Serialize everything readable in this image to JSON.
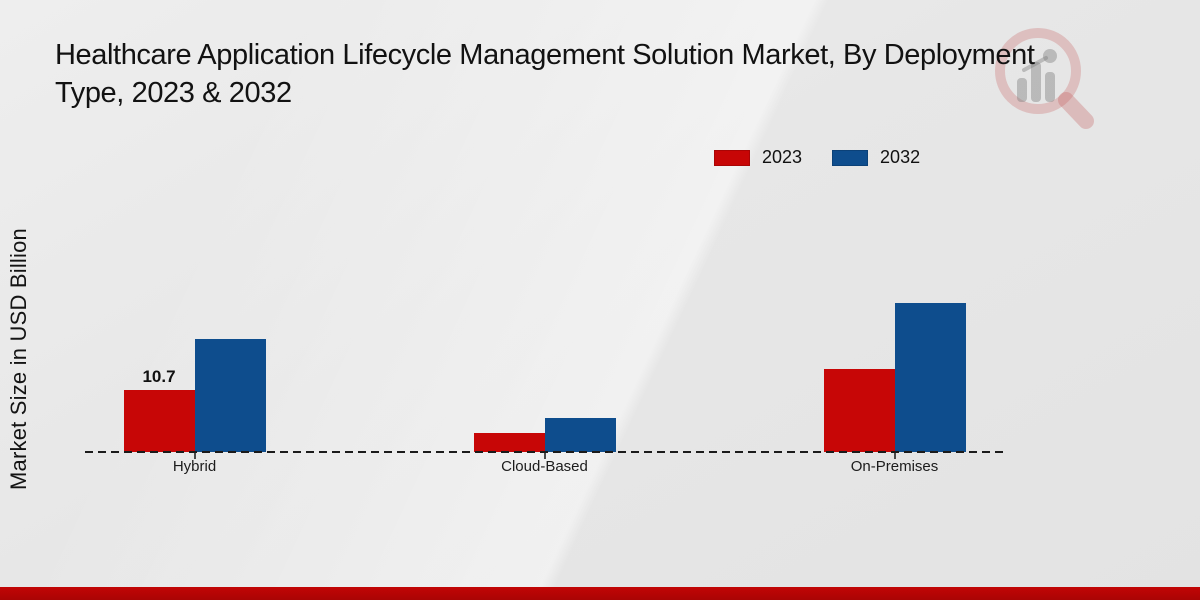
{
  "header": {
    "title_line1": "Healthcare Application Lifecycle Management Solution Market, By Deployment",
    "title_line2": "Type, 2023 & 2032"
  },
  "axis": {
    "y_label": "Market Size in USD Billion"
  },
  "chart_data": {
    "type": "bar",
    "title": "Healthcare Application Lifecycle Management Solution Market, By Deployment Type, 2023 & 2032",
    "xlabel": "",
    "ylabel": "Market Size in USD Billion",
    "categories": [
      "Hybrid",
      "Cloud-Based",
      "On-Premises"
    ],
    "series": [
      {
        "name": "2023",
        "color": "#c70606",
        "values": [
          10.7,
          3.3,
          14.3
        ]
      },
      {
        "name": "2032",
        "color": "#0e4d8d",
        "values": [
          19.5,
          5.9,
          25.7
        ]
      }
    ],
    "value_labels": [
      {
        "series_index": 0,
        "category_index": 0,
        "text": "10.7"
      }
    ],
    "legend_position": "top-right",
    "grid": false,
    "baseline_style": "dashed",
    "ylim": [
      0,
      27
    ]
  },
  "watermark": {
    "name": "market-research-future-logo"
  },
  "footer": {
    "accent_color": "#c20505"
  }
}
